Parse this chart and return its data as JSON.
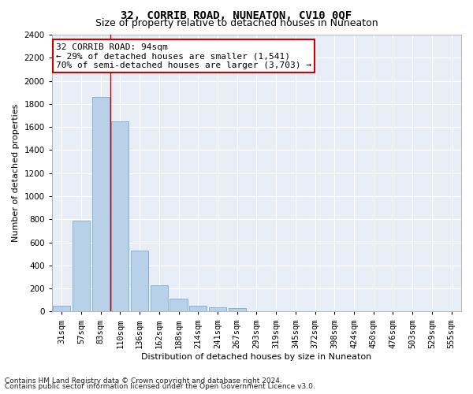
{
  "title": "32, CORRIB ROAD, NUNEATON, CV10 0QF",
  "subtitle": "Size of property relative to detached houses in Nuneaton",
  "xlabel": "Distribution of detached houses by size in Nuneaton",
  "ylabel": "Number of detached properties",
  "categories": [
    "31sqm",
    "57sqm",
    "83sqm",
    "110sqm",
    "136sqm",
    "162sqm",
    "188sqm",
    "214sqm",
    "241sqm",
    "267sqm",
    "293sqm",
    "319sqm",
    "345sqm",
    "372sqm",
    "398sqm",
    "424sqm",
    "450sqm",
    "476sqm",
    "503sqm",
    "529sqm",
    "555sqm"
  ],
  "values": [
    50,
    790,
    1860,
    1650,
    530,
    230,
    110,
    50,
    40,
    30,
    0,
    0,
    0,
    0,
    0,
    0,
    0,
    0,
    0,
    0,
    0
  ],
  "bar_color": "#b8d0e8",
  "bar_edge_color": "#7aaed0",
  "vline_index": 2,
  "vline_color": "#cc0000",
  "annotation_text": "32 CORRIB ROAD: 94sqm\n← 29% of detached houses are smaller (1,541)\n70% of semi-detached houses are larger (3,703) →",
  "annotation_box_facecolor": "#ffffff",
  "annotation_box_edgecolor": "#cc0000",
  "ylim": [
    0,
    2400
  ],
  "yticks": [
    0,
    200,
    400,
    600,
    800,
    1000,
    1200,
    1400,
    1600,
    1800,
    2000,
    2200,
    2400
  ],
  "footnote1": "Contains HM Land Registry data © Crown copyright and database right 2024.",
  "footnote2": "Contains public sector information licensed under the Open Government Licence v3.0.",
  "fig_facecolor": "#ffffff",
  "axes_facecolor": "#e8eef8",
  "grid_color": "#ffffff",
  "title_fontsize": 10,
  "subtitle_fontsize": 9,
  "axis_label_fontsize": 8,
  "tick_fontsize": 7.5,
  "annotation_fontsize": 8,
  "footnote_fontsize": 6.5
}
